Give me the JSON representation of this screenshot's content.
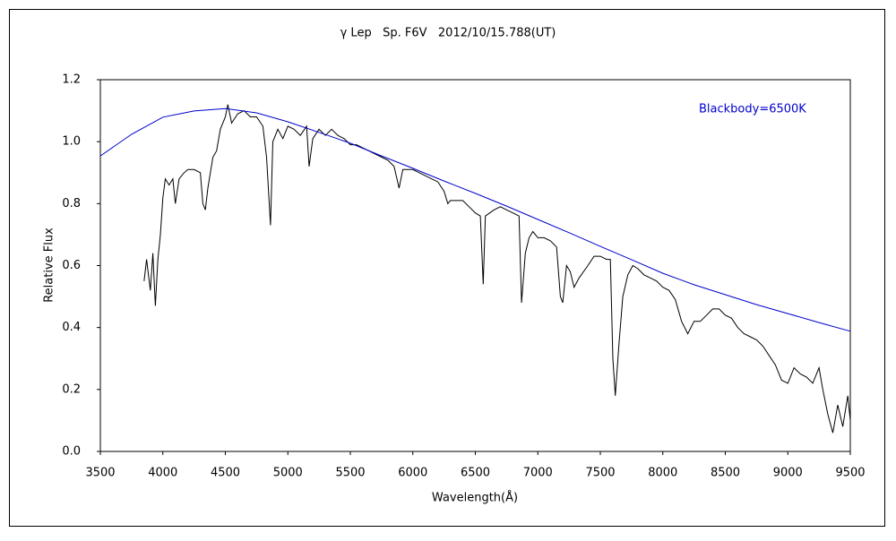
{
  "chart_data": {
    "type": "line",
    "title": "γ Lep   Sp. F6V   2012/10/15.788(UT)",
    "x_label": "Wavelength(Å)",
    "y_label": "Relative Flux",
    "xlim": [
      3500,
      9500
    ],
    "xticks": [
      3500,
      4000,
      4500,
      5000,
      5500,
      6000,
      6500,
      7000,
      7500,
      8000,
      8500,
      9000,
      9500
    ],
    "ylim": [
      0,
      1.2
    ],
    "yticks": [
      {
        "value": 0,
        "label": "0.0"
      },
      0.2,
      0.4,
      0.6,
      0.8,
      {
        "value": 1,
        "label": "1.0"
      },
      1.2
    ],
    "grid": false,
    "series": [
      {
        "color": "#000000",
        "x": [
          3850,
          3870,
          3900,
          3920,
          3940,
          3960,
          3980,
          4000,
          4020,
          4050,
          4080,
          4100,
          4130,
          4170,
          4200,
          4250,
          4300,
          4320,
          4340,
          4360,
          4400,
          4430,
          4460,
          4500,
          4520,
          4550,
          4600,
          4650,
          4700,
          4750,
          4800,
          4830,
          4861,
          4880,
          4920,
          4960,
          5000,
          5050,
          5100,
          5150,
          5170,
          5200,
          5250,
          5300,
          5350,
          5400,
          5450,
          5500,
          5550,
          5600,
          5650,
          5700,
          5750,
          5800,
          5850,
          5890,
          5920,
          6000,
          6100,
          6200,
          6250,
          6280,
          6300,
          6400,
          6450,
          6500,
          6540,
          6563,
          6580,
          6650,
          6700,
          6750,
          6800,
          6850,
          6870,
          6900,
          6930,
          6960,
          7000,
          7050,
          7100,
          7150,
          7180,
          7200,
          7230,
          7260,
          7290,
          7330,
          7400,
          7450,
          7500,
          7550,
          7580,
          7600,
          7620,
          7650,
          7680,
          7720,
          7760,
          7800,
          7850,
          7900,
          7950,
          8000,
          8050,
          8100,
          8150,
          8200,
          8250,
          8300,
          8350,
          8400,
          8450,
          8500,
          8550,
          8600,
          8650,
          8700,
          8750,
          8800,
          8850,
          8900,
          8950,
          9000,
          9050,
          9100,
          9150,
          9200,
          9250,
          9280,
          9320,
          9360,
          9400,
          9440,
          9480,
          9500
        ],
        "values": [
          0.55,
          0.62,
          0.52,
          0.64,
          0.47,
          0.62,
          0.7,
          0.82,
          0.88,
          0.86,
          0.88,
          0.8,
          0.88,
          0.9,
          0.91,
          0.91,
          0.9,
          0.8,
          0.78,
          0.85,
          0.95,
          0.97,
          1.04,
          1.08,
          1.12,
          1.06,
          1.09,
          1.1,
          1.08,
          1.08,
          1.05,
          0.95,
          0.73,
          1.0,
          1.04,
          1.01,
          1.05,
          1.04,
          1.02,
          1.05,
          0.92,
          1.01,
          1.04,
          1.02,
          1.04,
          1.02,
          1.01,
          0.99,
          0.99,
          0.98,
          0.97,
          0.96,
          0.95,
          0.94,
          0.92,
          0.85,
          0.91,
          0.91,
          0.89,
          0.87,
          0.84,
          0.8,
          0.81,
          0.81,
          0.79,
          0.77,
          0.76,
          0.54,
          0.76,
          0.78,
          0.79,
          0.78,
          0.77,
          0.76,
          0.48,
          0.64,
          0.69,
          0.71,
          0.69,
          0.69,
          0.68,
          0.66,
          0.5,
          0.48,
          0.6,
          0.58,
          0.53,
          0.56,
          0.6,
          0.63,
          0.63,
          0.62,
          0.62,
          0.3,
          0.18,
          0.35,
          0.5,
          0.57,
          0.6,
          0.59,
          0.57,
          0.56,
          0.55,
          0.53,
          0.52,
          0.49,
          0.42,
          0.38,
          0.42,
          0.42,
          0.44,
          0.46,
          0.46,
          0.44,
          0.43,
          0.4,
          0.38,
          0.37,
          0.36,
          0.34,
          0.31,
          0.28,
          0.23,
          0.22,
          0.27,
          0.25,
          0.24,
          0.22,
          0.27,
          0.2,
          0.12,
          0.06,
          0.15,
          0.08,
          0.18,
          0.1
        ]
      },
      {
        "name": "Blackbody=6500K",
        "color": "#0000cc",
        "x": [
          3500,
          3750,
          4000,
          4250,
          4500,
          4750,
          5000,
          5250,
          5500,
          5750,
          6000,
          6250,
          6500,
          6750,
          7000,
          7250,
          7500,
          7750,
          8000,
          8250,
          8500,
          8750,
          9000,
          9250,
          9500
        ],
        "values": [
          0.954,
          1.024,
          1.079,
          1.099,
          1.107,
          1.093,
          1.064,
          1.03,
          0.995,
          0.954,
          0.914,
          0.873,
          0.833,
          0.792,
          0.749,
          0.706,
          0.662,
          0.619,
          0.575,
          0.538,
          0.506,
          0.474,
          0.445,
          0.416,
          0.388
        ]
      }
    ]
  }
}
